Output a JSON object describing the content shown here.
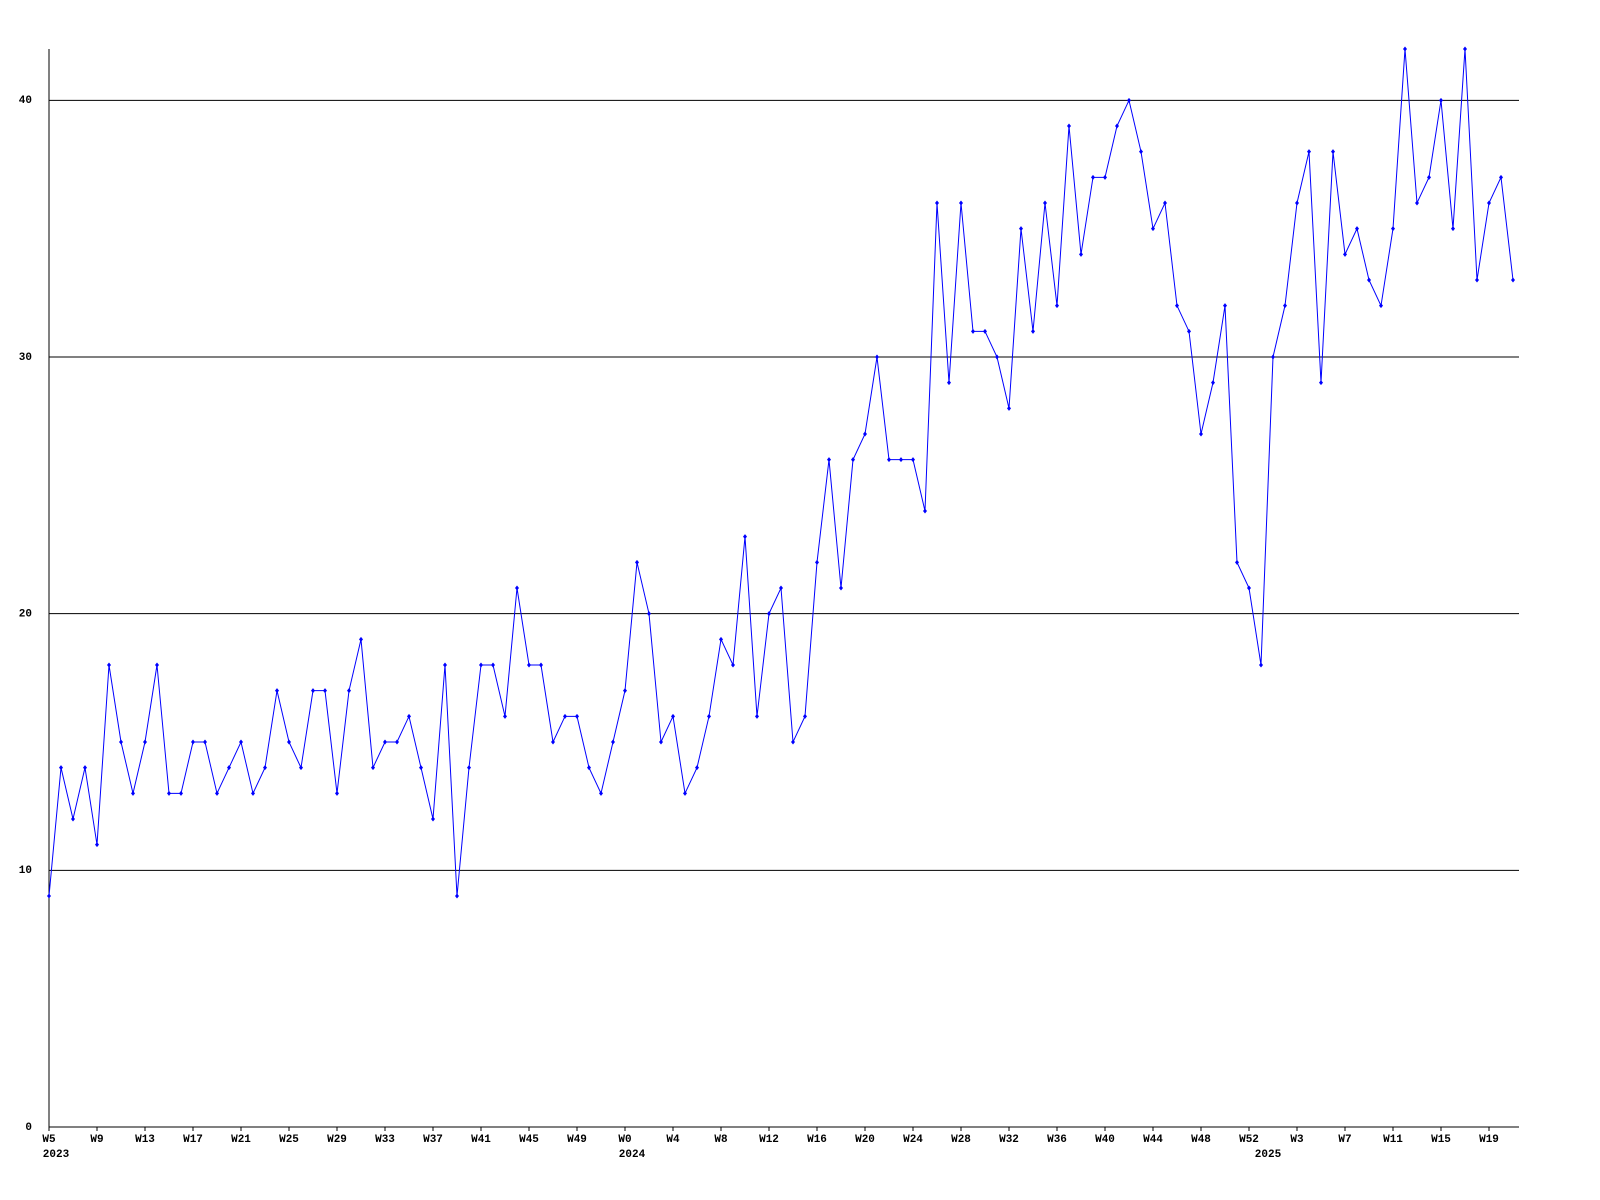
{
  "chart_data": {
    "type": "line",
    "categories": [
      "W5",
      null,
      null,
      null,
      "W9",
      null,
      null,
      null,
      "W13",
      null,
      null,
      null,
      "W17",
      null,
      null,
      null,
      "W21",
      null,
      null,
      null,
      "W25",
      null,
      null,
      null,
      "W29",
      null,
      null,
      null,
      "W33",
      null,
      null,
      null,
      "W37",
      null,
      null,
      null,
      "W41",
      null,
      null,
      null,
      "W45",
      null,
      null,
      null,
      "W49",
      null,
      null,
      null,
      "W0",
      null,
      null,
      null,
      "W4",
      null,
      null,
      null,
      "W8",
      null,
      null,
      null,
      "W12",
      null,
      null,
      null,
      "W16",
      null,
      null,
      null,
      "W20",
      null,
      null,
      null,
      "W24",
      null,
      null,
      null,
      "W28",
      null,
      null,
      null,
      "W32",
      null,
      null,
      null,
      "W36",
      null,
      null,
      null,
      "W40",
      null,
      null,
      null,
      "W44",
      null,
      null,
      null,
      "W48",
      null,
      null,
      null,
      "W52",
      null,
      null,
      null,
      "W3",
      null,
      null,
      null,
      "W7",
      null,
      null,
      null,
      "W11",
      null,
      null,
      null,
      "W15",
      null,
      null,
      null,
      "W19",
      null,
      null
    ],
    "years": [
      "2023",
      null,
      null,
      null,
      null,
      null,
      null,
      null,
      null,
      null,
      null,
      null,
      null,
      null,
      null,
      null,
      null,
      null,
      null,
      null,
      null,
      null,
      null,
      null,
      null,
      null,
      null,
      null,
      null,
      null,
      null,
      null,
      null,
      null,
      null,
      null,
      null,
      null,
      null,
      null,
      null,
      null,
      null,
      null,
      null,
      null,
      null,
      null,
      "2024",
      null,
      null,
      null,
      null,
      null,
      null,
      null,
      null,
      null,
      null,
      null,
      null,
      null,
      null,
      null,
      null,
      null,
      null,
      null,
      null,
      null,
      null,
      null,
      null,
      null,
      null,
      null,
      null,
      null,
      null,
      null,
      null,
      null,
      null,
      null,
      null,
      null,
      null,
      null,
      null,
      null,
      null,
      null,
      null,
      null,
      null,
      null,
      null,
      null,
      null,
      null,
      null,
      "2025",
      null,
      null,
      null,
      null,
      null,
      null,
      null,
      null,
      null,
      null,
      null,
      null,
      null,
      null,
      null,
      null,
      null,
      null,
      null,
      null,
      null
    ],
    "series": [
      {
        "color": "#0000ff",
        "values": [
          9,
          14,
          12,
          14,
          11,
          18,
          15,
          13,
          15,
          18,
          13,
          13,
          15,
          15,
          13,
          14,
          15,
          13,
          14,
          17,
          15,
          14,
          17,
          17,
          13,
          17,
          19,
          14,
          15,
          15,
          16,
          14,
          12,
          18,
          9,
          14,
          18,
          18,
          16,
          21,
          18,
          18,
          15,
          16,
          16,
          14,
          13,
          15,
          17,
          22,
          20,
          15,
          16,
          13,
          14,
          16,
          19,
          18,
          23,
          16,
          20,
          21,
          15,
          16,
          22,
          26,
          21,
          26,
          27,
          30,
          26,
          26,
          26,
          24,
          36,
          29,
          36,
          31,
          31,
          30,
          28,
          35,
          31,
          36,
          32,
          39,
          34,
          37,
          37,
          39,
          40,
          38,
          35,
          36,
          32,
          31,
          27,
          29,
          32,
          22,
          21,
          18,
          30,
          32,
          36,
          38,
          29,
          38,
          34,
          35,
          33,
          32,
          35,
          42,
          36,
          37,
          40,
          35,
          42,
          33,
          36,
          37,
          33
        ]
      }
    ],
    "ylim": [
      0,
      42
    ],
    "yticks": [
      0,
      10,
      20,
      30,
      40
    ],
    "grid": true
  }
}
